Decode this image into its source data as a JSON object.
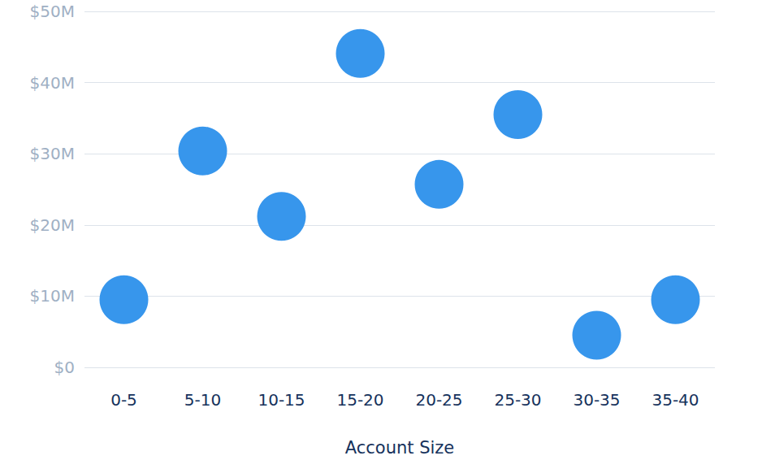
{
  "chart_data": {
    "type": "scatter",
    "x_label": "Account Size",
    "categories": [
      "0-5",
      "5-10",
      "10-15",
      "15-20",
      "20-25",
      "25-30",
      "30-35",
      "35-40"
    ],
    "values": [
      9.5,
      30.4,
      21.2,
      44.1,
      25.7,
      35.5,
      4.5,
      9.5
    ],
    "color": "#3796ec",
    "marker": "circle",
    "ylim": [
      0,
      50
    ],
    "yticks": [
      {
        "value": 0,
        "label": "$0"
      },
      {
        "value": 10,
        "label": "$10M"
      },
      {
        "value": 20,
        "label": "$20M"
      },
      {
        "value": 30,
        "label": "$30M"
      },
      {
        "value": 40,
        "label": "$40M"
      },
      {
        "value": 50,
        "label": "$50M"
      }
    ],
    "grid": true
  }
}
